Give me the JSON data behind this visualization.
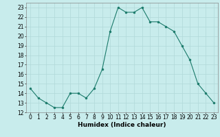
{
  "x": [
    0,
    1,
    2,
    3,
    4,
    5,
    6,
    7,
    8,
    9,
    10,
    11,
    12,
    13,
    14,
    15,
    16,
    17,
    18,
    19,
    20,
    21,
    22,
    23
  ],
  "y": [
    14.5,
    13.5,
    13.0,
    12.5,
    12.5,
    14.0,
    14.0,
    13.5,
    14.5,
    16.5,
    20.5,
    23.0,
    22.5,
    22.5,
    23.0,
    21.5,
    21.5,
    21.0,
    20.5,
    19.0,
    17.5,
    15.0,
    14.0,
    13.0
  ],
  "line_color": "#1a7a6a",
  "marker_color": "#1a7a6a",
  "bg_color": "#c8ecec",
  "grid_color": "#b0d8d8",
  "title": "",
  "xlabel": "Humidex (Indice chaleur)",
  "ylabel": "",
  "xlim": [
    -0.5,
    23.5
  ],
  "ylim": [
    12,
    23.5
  ],
  "yticks": [
    12,
    13,
    14,
    15,
    16,
    17,
    18,
    19,
    20,
    21,
    22,
    23
  ],
  "xticks": [
    0,
    1,
    2,
    3,
    4,
    5,
    6,
    7,
    8,
    9,
    10,
    11,
    12,
    13,
    14,
    15,
    16,
    17,
    18,
    19,
    20,
    21,
    22,
    23
  ],
  "tick_fontsize": 5.5,
  "label_fontsize": 6.5
}
